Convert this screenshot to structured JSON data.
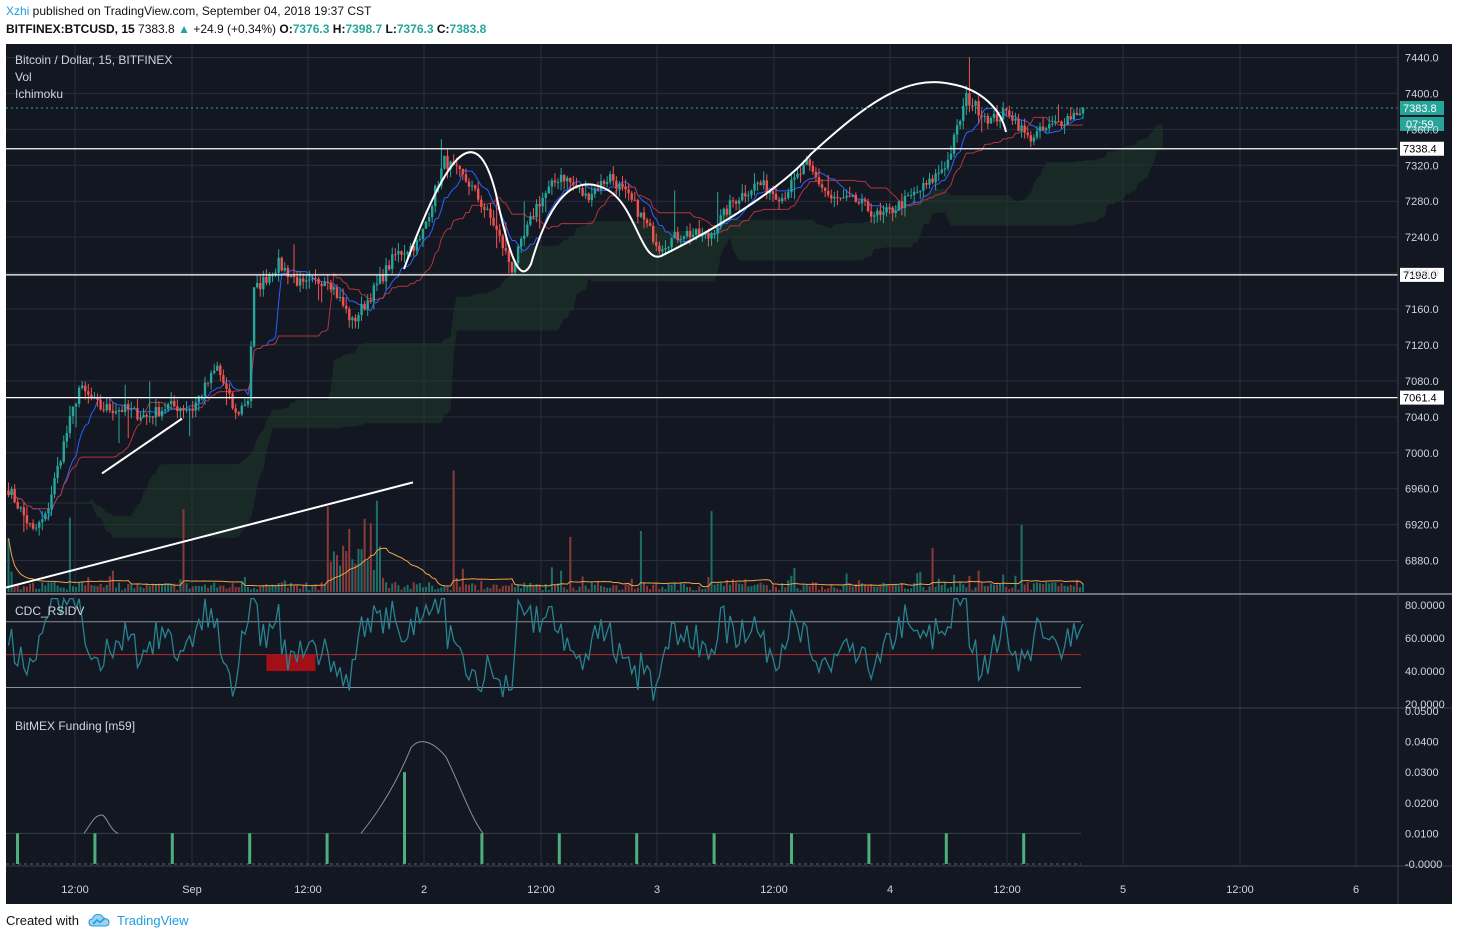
{
  "header": {
    "author": "Xzhi",
    "published_text": " published on TradingView.com, September 04, 2018 19:37 CST",
    "symbol": "BITFINEX:BTCUSD, 15",
    "last": "7383.8",
    "arrow": "▲",
    "change": "+24.9 (+0.34%)",
    "o_label": "O:",
    "o": "7376.3",
    "h_label": "H:",
    "h": "7398.7",
    "l_label": "L:",
    "l": "7376.3",
    "c_label": "C:",
    "c": "7383.8"
  },
  "panes": {
    "main_title": "Bitcoin / Dollar, 15, BITFINEX",
    "vol_label": "Vol",
    "ichimoku_label": "Ichimoku",
    "rsi_label": "CDC_RSIDV",
    "funding_label": "BitMEX Funding [m59]"
  },
  "footer": {
    "created": "Created with",
    "brand": "TradingView"
  },
  "colors": {
    "background": "#131722",
    "up": "#26a69a",
    "down": "#ef5350",
    "grid": "#2a2e39",
    "axis_text": "#d1d4dc",
    "rsi_line": "#27838f",
    "rsi_oversold_fill": "#a30f16",
    "funding_bar": "#4caf7d",
    "vol_ma": "#f0a24a"
  },
  "chart_data": [
    {
      "type": "candlestick",
      "title": "Bitcoin / Dollar, 15, BITFINEX",
      "x_ticks": [
        "12:00",
        "Sep",
        "12:00",
        "2",
        "12:00",
        "3",
        "12:00",
        "4",
        "12:00",
        "5",
        "12:00",
        "6"
      ],
      "y_ticks": [
        "6880.0",
        "6920.0",
        "6960.0",
        "7000.0",
        "7040.0",
        "7080.0",
        "7120.0",
        "7160.0",
        "7200.0",
        "7240.0",
        "7280.0",
        "7320.0",
        "7360.0",
        "7400.0",
        "7440.0"
      ],
      "ylim": [
        6845,
        7455
      ],
      "last_price": 7383.8,
      "countdown": "07:59",
      "horizontal_levels": [
        "7338.4",
        "7198.0",
        "7061.4"
      ],
      "close_anchors": [
        [
          0,
          6960
        ],
        [
          8,
          6912
        ],
        [
          12,
          6928
        ],
        [
          18,
          7010
        ],
        [
          23,
          7072
        ],
        [
          30,
          7050
        ],
        [
          38,
          7048
        ],
        [
          45,
          7040
        ],
        [
          52,
          7052
        ],
        [
          60,
          7050
        ],
        [
          68,
          7095
        ],
        [
          74,
          7042
        ],
        [
          78,
          7060
        ],
        [
          80,
          7180
        ],
        [
          88,
          7210
        ],
        [
          96,
          7185
        ],
        [
          104,
          7195
        ],
        [
          112,
          7145
        ],
        [
          118,
          7175
        ],
        [
          126,
          7220
        ],
        [
          134,
          7235
        ],
        [
          142,
          7325
        ],
        [
          150,
          7300
        ],
        [
          158,
          7255
        ],
        [
          164,
          7205
        ],
        [
          172,
          7275
        ],
        [
          180,
          7310
        ],
        [
          188,
          7285
        ],
        [
          196,
          7308
        ],
        [
          204,
          7275
        ],
        [
          212,
          7230
        ],
        [
          220,
          7245
        ],
        [
          228,
          7240
        ],
        [
          236,
          7280
        ],
        [
          244,
          7300
        ],
        [
          252,
          7285
        ],
        [
          260,
          7320
        ],
        [
          268,
          7282
        ],
        [
          276,
          7280
        ],
        [
          284,
          7262
        ],
        [
          292,
          7280
        ],
        [
          300,
          7300
        ],
        [
          306,
          7325
        ],
        [
          312,
          7395
        ],
        [
          320,
          7370
        ],
        [
          326,
          7380
        ],
        [
          332,
          7350
        ],
        [
          338,
          7360
        ],
        [
          346,
          7375
        ],
        [
          350,
          7383.8
        ]
      ],
      "volume_spike_bars": [
        0,
        20,
        57,
        104,
        111,
        116,
        118,
        120,
        183,
        206,
        229,
        301,
        330
      ],
      "volume_note": "Vol with moving average (orange)"
    },
    {
      "type": "line",
      "title": "CDC_RSIDV",
      "y_ticks": [
        "20.0000",
        "40.0000",
        "60.0000",
        "80.0000"
      ],
      "levels": [
        30,
        50,
        70
      ],
      "ylim": [
        20,
        85
      ],
      "oversold_shaded_bar_range": [
        84,
        100
      ]
    },
    {
      "type": "bar",
      "title": "BitMEX Funding [m59]",
      "y_ticks": [
        "-0.0000",
        "0.0100",
        "0.0200",
        "0.0300",
        "0.0400",
        "0.0500"
      ],
      "ylim": [
        -0.001,
        0.05
      ],
      "funding_values": [
        0.01,
        0.01,
        0.01,
        0.01,
        0.01,
        0.03,
        0.01,
        0.01,
        0.01,
        0.01,
        0.01,
        0.01,
        0.01,
        0.01
      ],
      "predicted_peak": 0.041
    }
  ]
}
